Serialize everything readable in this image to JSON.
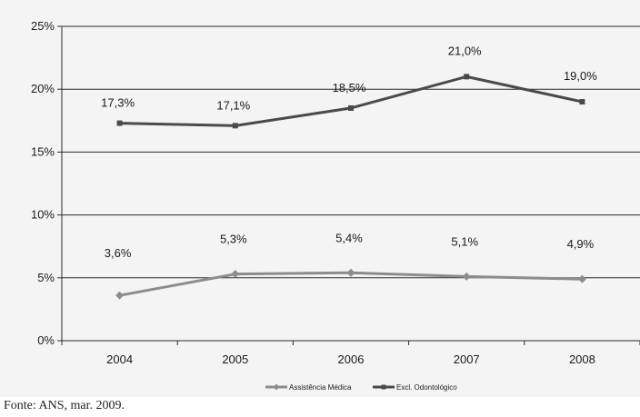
{
  "chart_data": {
    "type": "line",
    "categories": [
      "2004",
      "2005",
      "2006",
      "2007",
      "2008"
    ],
    "ylim": [
      0,
      25
    ],
    "y_ticks": [
      0,
      5,
      10,
      15,
      20,
      25
    ],
    "y_tick_labels": [
      "0%",
      "5%",
      "10%",
      "15%",
      "20%",
      "25%"
    ],
    "grid": "horizontal",
    "legend_position": "bottom-center",
    "series": [
      {
        "name": "Assistência Médica",
        "values": [
          3.6,
          5.3,
          5.4,
          5.1,
          4.9
        ],
        "labels": [
          "3,6%",
          "5,3%",
          "5,4%",
          "5,1%",
          "4,9%"
        ],
        "color": "#8c8c8c",
        "marker": "diamond"
      },
      {
        "name": "Excl. Odontológico",
        "values": [
          17.3,
          17.1,
          18.5,
          21.0,
          19.0
        ],
        "labels": [
          "17,3%",
          "17,1%",
          "18,5%",
          "21,0%",
          "19,0%"
        ],
        "color": "#4a4a4a",
        "marker": "square"
      }
    ]
  },
  "source": "Fonte: ANS, mar. 2009."
}
